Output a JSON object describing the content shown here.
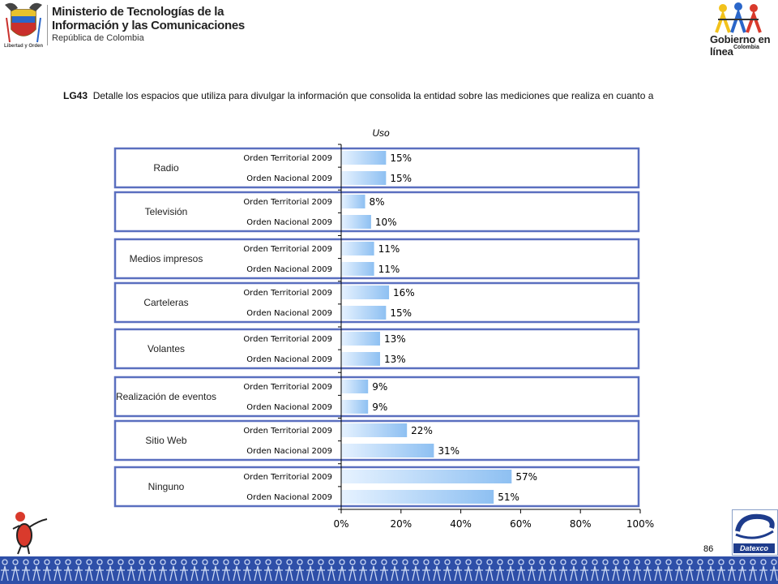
{
  "header": {
    "ministry_line1": "Ministerio de Tecnologías de la",
    "ministry_line2": "Información y las Comunicaciones",
    "ministry_line3": "República de Colombia",
    "seal_motto": "Libertad y Orden",
    "gel_logo_text": "Gobierno en línea",
    "gel_logo_sub": "Colombia"
  },
  "question": {
    "code": "LG43",
    "text": "Detalle los espacios que utiliza para divulgar la información que consolida la entidad sobre las mediciones que realiza   en cuanto a"
  },
  "chart_data": {
    "type": "bar",
    "orientation": "horizontal",
    "title": "Uso",
    "xlim": [
      0,
      100
    ],
    "x_ticks": [
      "0%",
      "20%",
      "40%",
      "60%",
      "80%",
      "100%"
    ],
    "groups": [
      {
        "label": "Radio",
        "bars": [
          {
            "series": "Orden Territorial 2009",
            "value": 15,
            "label": "15%"
          },
          {
            "series": "Orden Nacional 2009",
            "value": 15,
            "label": "15%"
          }
        ]
      },
      {
        "label": "Televisión",
        "bars": [
          {
            "series": "Orden Territorial 2009",
            "value": 8,
            "label": "8%"
          },
          {
            "series": "Orden Nacional 2009",
            "value": 10,
            "label": "10%"
          }
        ]
      },
      {
        "label": "Medios impresos",
        "bars": [
          {
            "series": "Orden Territorial 2009",
            "value": 11,
            "label": "11%"
          },
          {
            "series": "Orden Nacional 2009",
            "value": 11,
            "label": "11%"
          }
        ]
      },
      {
        "label": "Carteleras",
        "bars": [
          {
            "series": "Orden Territorial 2009",
            "value": 16,
            "label": "16%"
          },
          {
            "series": "Orden Nacional 2009",
            "value": 15,
            "label": "15%"
          }
        ]
      },
      {
        "label": "Volantes",
        "bars": [
          {
            "series": "Orden Territorial 2009",
            "value": 13,
            "label": "13%"
          },
          {
            "series": "Orden Nacional 2009",
            "value": 13,
            "label": "13%"
          }
        ]
      },
      {
        "label": "Realización  de eventos",
        "bars": [
          {
            "series": "Orden Territorial 2009",
            "value": 9,
            "label": "9%"
          },
          {
            "series": "Orden Nacional 2009",
            "value": 9,
            "label": "9%"
          }
        ]
      },
      {
        "label": "Sitio Web",
        "bars": [
          {
            "series": "Orden Territorial 2009",
            "value": 22,
            "label": "22%"
          },
          {
            "series": "Orden Nacional 2009",
            "value": 31,
            "label": "31%"
          }
        ]
      },
      {
        "label": "Ninguno",
        "bars": [
          {
            "series": "Orden Territorial 2009",
            "value": 57,
            "label": "57%"
          },
          {
            "series": "Orden Nacional 2009",
            "value": 51,
            "label": "51%"
          }
        ]
      }
    ],
    "colors": {
      "bar_light": "#e6f2ff",
      "bar_dark": "#8ec0f2",
      "box_border": "#5a6fbf",
      "axis": "#000000"
    }
  },
  "footer": {
    "page_number": "86",
    "datexco_label": "Datexco",
    "band_color": "#2e4fa8"
  }
}
